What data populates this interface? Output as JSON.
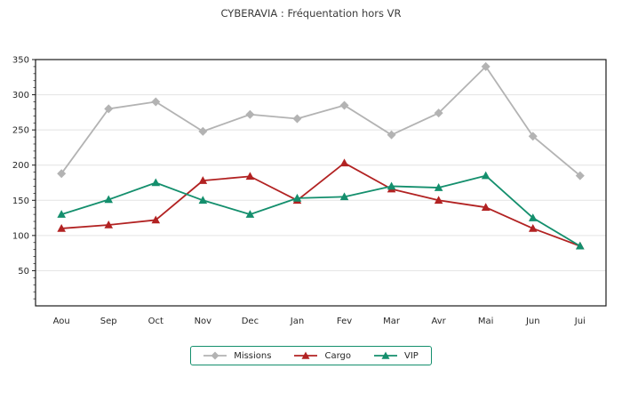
{
  "title": "CYBERAVIA : Fréquentation hors VR",
  "chart_data": {
    "type": "line",
    "title": "CYBERAVIA : Fréquentation hors VR",
    "categories": [
      "Aou",
      "Sep",
      "Oct",
      "Nov",
      "Dec",
      "Jan",
      "Fev",
      "Mar",
      "Avr",
      "Mai",
      "Jun",
      "Jui"
    ],
    "series": [
      {
        "name": "Missions",
        "color": "#b3b3b3",
        "marker": "diamond",
        "values": [
          188,
          280,
          290,
          248,
          272,
          266,
          285,
          243,
          274,
          340,
          241,
          185
        ]
      },
      {
        "name": "Cargo",
        "color": "#b22222",
        "marker": "triangle",
        "values": [
          110,
          115,
          122,
          178,
          184,
          150,
          203,
          166,
          150,
          140,
          110,
          85
        ]
      },
      {
        "name": "VIP",
        "color": "#148f6d",
        "marker": "triangle",
        "values": [
          130,
          151,
          175,
          150,
          130,
          153,
          155,
          170,
          168,
          185,
          125,
          85
        ]
      }
    ],
    "xlabel": "",
    "ylabel": "",
    "ylim": [
      0,
      350
    ],
    "yticks": [
      50,
      100,
      150,
      200,
      250,
      300,
      350
    ],
    "minor_tick_step": 10,
    "grid": "horizontal",
    "grid_color": "#e3e3e3",
    "frame_color": "#1a1a1a",
    "legend_position": "bottom-center",
    "legend_border_color": "#148f6d"
  }
}
